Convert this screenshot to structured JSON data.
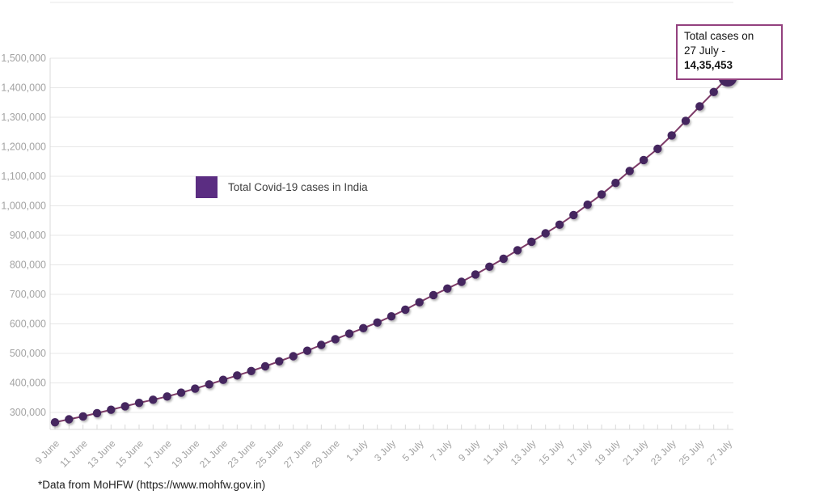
{
  "legend": {
    "label": "Total Covid-19 cases in India",
    "color": "#5b2d82"
  },
  "annotation": {
    "line1": "Total cases on",
    "line2_prefix": "27 July - ",
    "line2_value": "14,35,453",
    "border_color": "#93417f"
  },
  "footer": {
    "text": "*Data from MoHFW (https://www.mohfw.gov.in)"
  },
  "colors": {
    "dot": "#44265f",
    "line": "#7d3b68",
    "grid": "#e7e7e7",
    "axis": "#d9d9d9",
    "tick_label": "#a3a3a3",
    "connector": "#7a2d66"
  },
  "chart_data": {
    "type": "line",
    "title": "",
    "xlabel": "",
    "ylabel": "",
    "legend_position": "center-left",
    "grid": "horizontal",
    "ylim": [
      300000,
      1500000
    ],
    "y_ticks": [
      300000,
      400000,
      500000,
      600000,
      700000,
      800000,
      900000,
      1000000,
      1100000,
      1200000,
      1300000,
      1400000,
      1500000
    ],
    "y_tick_labels": [
      "300,000",
      "400,000",
      "500,000",
      "600,000",
      "700,000",
      "800,000",
      "900,000",
      "1,000,000",
      "1,100,000",
      "1,200,000",
      "1,300,000",
      "1,400,000",
      "1,500,000"
    ],
    "x_tick_labels": [
      "9 June",
      "11 June",
      "13 June",
      "15 June",
      "17 June",
      "19 June",
      "21 June",
      "23 June",
      "25 June",
      "27 June",
      "29 June",
      "1 July",
      "3 July",
      "5 July",
      "7 July",
      "9 July",
      "11 July",
      "13 July",
      "15 July",
      "17 July",
      "19 July",
      "21 July",
      "23 July",
      "25 July",
      "27 July"
    ],
    "label_every": 2,
    "x": [
      "9 June",
      "10 June",
      "11 June",
      "12 June",
      "13 June",
      "14 June",
      "15 June",
      "16 June",
      "17 June",
      "18 June",
      "19 June",
      "20 June",
      "21 June",
      "22 June",
      "23 June",
      "24 June",
      "25 June",
      "26 June",
      "27 June",
      "28 June",
      "29 June",
      "30 June",
      "1 July",
      "2 July",
      "3 July",
      "4 July",
      "5 July",
      "6 July",
      "7 July",
      "8 July",
      "9 July",
      "10 July",
      "11 July",
      "12 July",
      "13 July",
      "14 July",
      "15 July",
      "16 July",
      "17 July",
      "18 July",
      "19 July",
      "20 July",
      "21 July",
      "22 July",
      "23 July",
      "24 July",
      "25 July",
      "26 July",
      "27 July"
    ],
    "series": [
      {
        "name": "Total Covid-19 cases in India",
        "values": [
          266598,
          276583,
          286579,
          297535,
          308993,
          320922,
          332424,
          343091,
          354065,
          366946,
          380532,
          395048,
          410461,
          425282,
          440215,
          456183,
          473105,
          490401,
          508953,
          528859,
          548318,
          566840,
          585493,
          604641,
          625544,
          648315,
          673165,
          697413,
          719665,
          742417,
          767296,
          793802,
          820916,
          849553,
          878254,
          906752,
          936181,
          968876,
          1003832,
          1038716,
          1077618,
          1118043,
          1155191,
          1193078,
          1238635,
          1287945,
          1336861,
          1385522,
          1435453
        ]
      }
    ],
    "highlight_last_point": true
  }
}
